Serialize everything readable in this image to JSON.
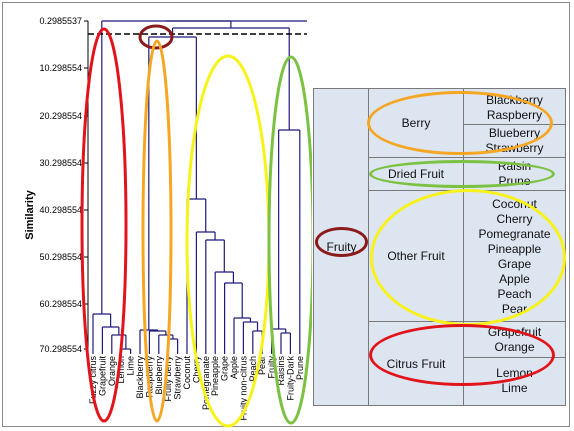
{
  "dendrogram": {
    "y_label": "Similarity",
    "y_ticks": [
      "0.2985537",
      "10.298554",
      "20.298554",
      "30.298554",
      "40.298554",
      "50.298554",
      "60.298554",
      "70.298554"
    ],
    "leaves": [
      "Fuzzy citrus",
      "Grapefruit",
      "Orange",
      "Lemon",
      "Lime",
      "Blackberry",
      "Raspberry",
      "Blueberry",
      "Fruity berry",
      "Strawberry",
      "Coconut",
      "Cherry",
      "Pomegranate",
      "Pineapple",
      "Grape",
      "Apple",
      "Fruity non-citrus",
      "Peach",
      "Pear",
      "Fruity",
      "Raisins",
      "Fruity-Dark",
      "Prune"
    ],
    "colors": {
      "tree": "#1f1a7a",
      "cut_line": "#000000"
    }
  },
  "table": {
    "root": "Fruity",
    "groups": [
      {
        "name": "Berry",
        "fruits": [
          "Blackberry",
          "Raspberry",
          "Blueberry",
          "Strawberry"
        ]
      },
      {
        "name": "Dried Fruit",
        "fruits": [
          "Raisin",
          "Prune"
        ]
      },
      {
        "name": "Other Fruit",
        "fruits": [
          "Coconut",
          "Cherry",
          "Pomegranate",
          "Pineapple",
          "Grape",
          "Apple",
          "Peach",
          "Pear"
        ]
      },
      {
        "name": "Citrus Fruit",
        "fruits": [
          "Grapefruit",
          "Orange",
          "Lemon",
          "Lime"
        ]
      }
    ]
  },
  "highlight_colors": {
    "root": "#8b1a1a",
    "berry": "#f5a623",
    "dried": "#7cc242",
    "other": "#f7f31a",
    "citrus": "#e2141b"
  }
}
